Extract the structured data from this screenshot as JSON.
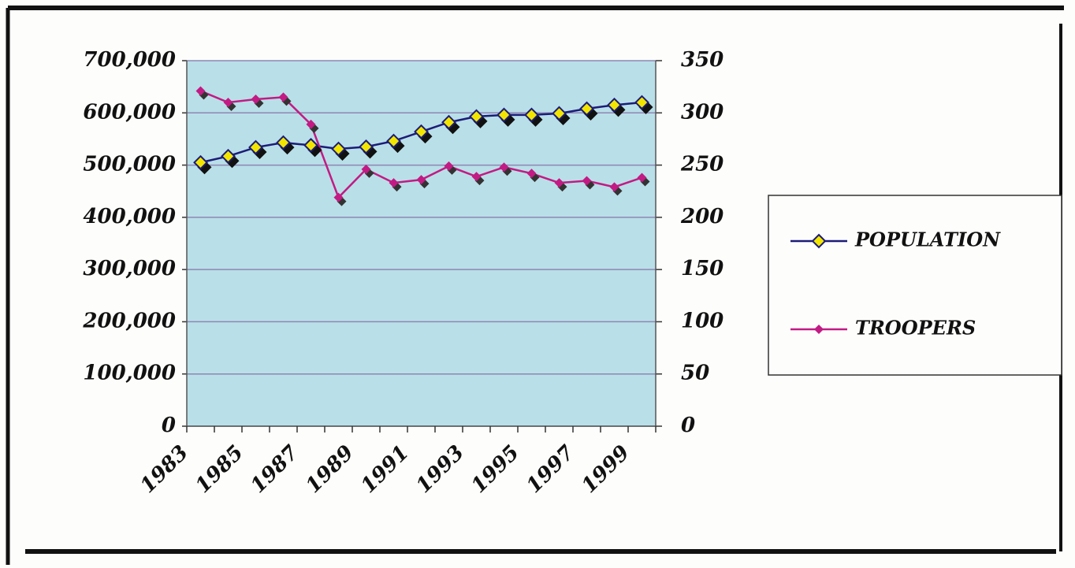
{
  "chart_data": {
    "type": "line",
    "categories": [
      "1983",
      null,
      "1985",
      null,
      "1987",
      null,
      "1989",
      null,
      "1991",
      null,
      "1993",
      null,
      "1995",
      null,
      "1997",
      null,
      "1999"
    ],
    "series": [
      {
        "name": "POPULATION",
        "color": "#1c1c78",
        "marker_color": "#f2e600",
        "values": [
          505000,
          517000,
          534000,
          543000,
          538000,
          531000,
          535000,
          546000,
          564000,
          582000,
          593000,
          596000,
          596000,
          599000,
          608000,
          615000,
          620000
        ]
      },
      {
        "name": "TROOPERS",
        "color": "#c21b84",
        "axis": "y2",
        "values": [
          321,
          310,
          313,
          315,
          289,
          219,
          246,
          233,
          236,
          249,
          239,
          248,
          242,
          233,
          235,
          229,
          238
        ]
      }
    ],
    "ylim": [
      0,
      700000
    ],
    "yticks": [
      0,
      {
        "value": 100000,
        "label": "100,000"
      },
      {
        "value": 200000,
        "label": "200,000"
      },
      {
        "value": 300000,
        "label": "300,000"
      },
      {
        "value": 400000,
        "label": "400,000"
      },
      {
        "value": 500000,
        "label": "500,000"
      },
      {
        "value": 600000,
        "label": "600,000"
      },
      {
        "value": 700000,
        "label": "700,000"
      }
    ],
    "y2lim": [
      0,
      350
    ],
    "y2ticks": [
      0,
      50,
      100,
      150,
      200,
      250,
      300,
      350
    ],
    "grid": true,
    "legend": "right",
    "plot_background": "#b9dfe8"
  }
}
